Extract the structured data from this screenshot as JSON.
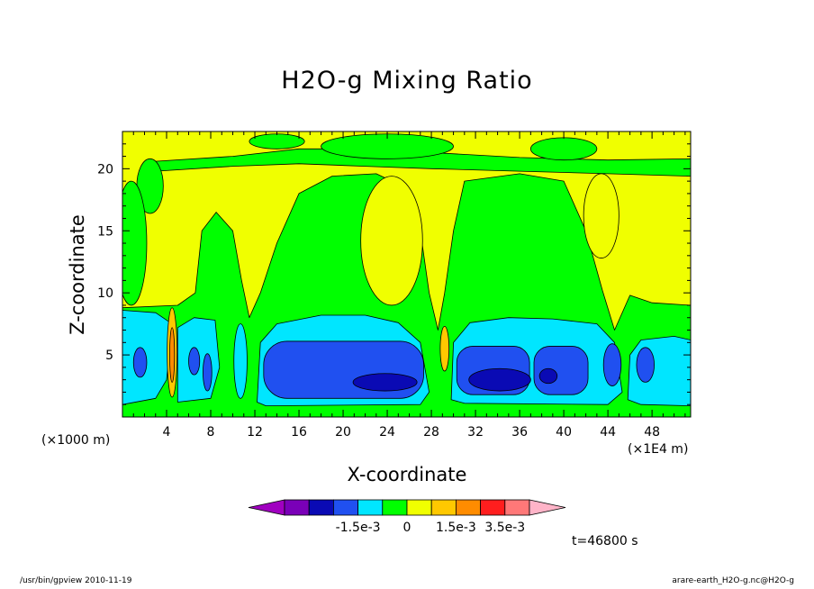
{
  "chart_data": {
    "type": "heatmap",
    "title": "H2O-g Mixing Ratio",
    "xlabel": "X-coordinate",
    "ylabel": "Z-coordinate",
    "x_unit_left": "(×1000 m)",
    "x_unit_right": "(×1E4 m)",
    "xlim": [
      0,
      51.5
    ],
    "ylim": [
      0,
      23
    ],
    "xticks": [
      "4",
      "8",
      "12",
      "16",
      "20",
      "24",
      "28",
      "32",
      "36",
      "40",
      "44",
      "48"
    ],
    "yticks": [
      "5",
      "10",
      "15",
      "20"
    ],
    "colorbar": {
      "colors": [
        "#a000c0",
        "#7a00b8",
        "#0a0ab4",
        "#2050f0",
        "#00e6ff",
        "#00ff00",
        "#f0ff00",
        "#ffc800",
        "#ff8c00",
        "#ff1e1e",
        "#ff7878",
        "#ffb4c8"
      ],
      "labels": [
        "-1.5e-3",
        "0",
        "1.5e-3",
        "3.5e-3"
      ]
    },
    "time_label": "t=46800 s",
    "footer_left": "/usr/bin/gpview  2010-11-19",
    "footer_right": "arare-earth_H2O-g.nc@H2O-g"
  }
}
